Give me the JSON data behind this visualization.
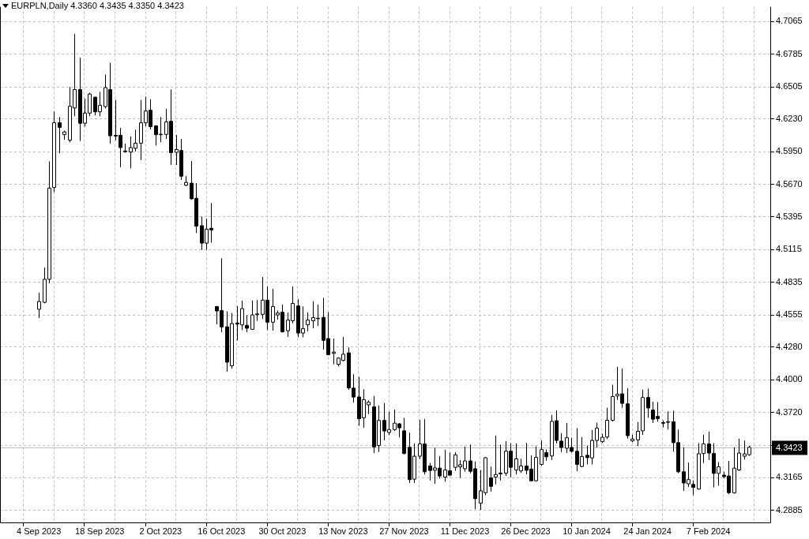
{
  "chart_data": {
    "type": "candlestick",
    "title": "EURPLN,Daily 4.3360 4.3435 4.3350 4.3423",
    "categories": [
      "4 Sep 2023",
      null,
      null,
      null,
      null,
      null,
      null,
      null,
      null,
      null,
      null,
      null,
      "18 Sep 2023",
      null,
      null,
      null,
      null,
      null,
      null,
      null,
      null,
      null,
      null,
      null,
      "2 Oct 2023",
      null,
      null,
      null,
      null,
      null,
      null,
      null,
      null,
      null,
      null,
      null,
      "16 Oct 2023",
      null,
      null,
      null,
      null,
      null,
      null,
      null,
      null,
      null,
      null,
      null,
      "30 Oct 2023",
      null,
      null,
      null,
      null,
      null,
      null,
      null,
      null,
      null,
      null,
      null,
      "13 Nov 2023",
      null,
      null,
      null,
      null,
      null,
      null,
      null,
      null,
      null,
      null,
      null,
      "27 Nov 2023",
      null,
      null,
      null,
      null,
      null,
      null,
      null,
      null,
      null,
      null,
      null,
      "11 Dec 2023",
      null,
      null,
      null,
      null,
      null,
      null,
      null,
      null,
      null,
      null,
      null,
      "26 Dec 2023",
      null,
      null,
      null,
      null,
      null,
      null,
      null,
      null,
      null,
      null,
      null,
      "10 Jan 2024",
      null,
      null,
      null,
      null,
      null,
      null,
      null,
      null,
      null,
      null,
      null,
      "24 Jan 2024",
      null,
      null,
      null,
      null,
      null,
      null,
      null,
      null,
      null,
      null,
      null,
      "7 Feb 2024",
      null,
      null,
      null,
      null,
      null,
      null,
      null,
      null
    ],
    "ohlc": [
      [
        4.4603,
        4.4744,
        4.4529,
        4.467
      ],
      [
        4.4663,
        4.496,
        4.4654,
        4.486
      ],
      [
        4.486,
        4.5868,
        4.4826,
        4.564
      ],
      [
        4.5645,
        4.6294,
        4.5607,
        4.6198
      ],
      [
        4.6198,
        4.6247,
        4.5937,
        4.6158
      ],
      [
        4.6098,
        4.6131,
        4.6053,
        4.612
      ],
      [
        4.6049,
        4.6504,
        4.6031,
        4.6339
      ],
      [
        4.6325,
        4.6957,
        4.6254,
        4.6482
      ],
      [
        4.6482,
        4.6756,
        4.6042,
        4.6194
      ],
      [
        4.6194,
        4.6404,
        4.6165,
        4.6281
      ],
      [
        4.6281,
        4.6455,
        4.6254,
        4.6444
      ],
      [
        4.6417,
        4.6421,
        4.6261,
        4.6292
      ],
      [
        4.6292,
        4.6462,
        4.6254,
        4.6348
      ],
      [
        4.6337,
        4.6611,
        4.6321,
        4.6499
      ],
      [
        4.6482,
        4.6711,
        4.602,
        4.6087
      ],
      [
        4.6091,
        4.6395,
        4.6049,
        4.6085
      ],
      [
        4.6091,
        4.6154,
        4.5819,
        4.5986
      ],
      [
        4.5957,
        4.602,
        4.5942,
        4.5951
      ],
      [
        4.5948,
        4.6082,
        4.5808,
        4.5986
      ],
      [
        4.598,
        4.6138,
        4.5953,
        4.6024
      ],
      [
        4.6024,
        4.6392,
        4.5879,
        4.6198
      ],
      [
        4.6198,
        4.6421,
        4.6169,
        4.6299
      ],
      [
        4.6305,
        4.6399,
        4.6142,
        4.6165
      ],
      [
        4.6172,
        4.6176,
        4.6004,
        4.6096
      ],
      [
        4.61,
        4.6247,
        4.6031,
        4.6096
      ],
      [
        4.6099,
        4.6318,
        4.6059,
        4.6206
      ],
      [
        4.6211,
        4.6483,
        4.5838,
        4.5943
      ],
      [
        4.5945,
        4.6095,
        4.5838,
        4.597
      ],
      [
        4.5961,
        4.6059,
        4.5709,
        4.5742
      ],
      [
        4.5664,
        4.5742,
        4.5657,
        4.5688
      ],
      [
        4.5682,
        4.5871,
        4.5541,
        4.5548
      ],
      [
        4.5552,
        4.5682,
        4.5256,
        4.5314
      ],
      [
        4.5318,
        4.5396,
        4.5111,
        4.5169
      ],
      [
        4.5169,
        4.5378,
        4.5111,
        4.5289
      ],
      [
        4.5296,
        4.5512,
        4.5173,
        4.5282
      ],
      [
        4.4627,
        4.4631,
        4.4475,
        4.4589
      ],
      [
        4.4593,
        4.5039,
        4.4408,
        4.4453
      ],
      [
        4.4453,
        4.4586,
        4.4069,
        4.4151
      ],
      [
        4.412,
        4.4571,
        4.4095,
        4.4481
      ],
      [
        4.4486,
        4.4631,
        4.4336,
        4.4477
      ],
      [
        4.447,
        4.4678,
        4.4426,
        4.4609
      ],
      [
        4.4466,
        4.4553,
        4.4408,
        4.4441
      ],
      [
        4.4432,
        4.4678,
        4.4426,
        4.4555
      ],
      [
        4.4557,
        4.4682,
        4.4504,
        4.4564
      ],
      [
        4.456,
        4.4879,
        4.4519,
        4.4682
      ],
      [
        4.4682,
        4.48,
        4.4426,
        4.4493
      ],
      [
        4.4493,
        4.4778,
        4.4421,
        4.4627
      ],
      [
        4.4555,
        4.4593,
        4.4515,
        4.4571
      ],
      [
        4.4578,
        4.4643,
        4.4404,
        4.4411
      ],
      [
        4.442,
        4.4576,
        4.4367,
        4.4511
      ],
      [
        4.4505,
        4.4799,
        4.4483,
        4.4654
      ],
      [
        4.4632,
        4.469,
        4.4364,
        4.44
      ],
      [
        4.44,
        4.4628,
        4.4364,
        4.4438
      ],
      [
        4.4471,
        4.4578,
        4.4416,
        4.4511
      ],
      [
        4.4505,
        4.4672,
        4.4442,
        4.4532
      ],
      [
        4.4527,
        4.4643,
        4.446,
        4.4523
      ],
      [
        4.4534,
        4.4701,
        4.4259,
        4.4338
      ],
      [
        4.4353,
        4.4578,
        4.421,
        4.4215
      ],
      [
        4.4226,
        4.4353,
        4.4132,
        4.4237
      ],
      [
        4.4132,
        4.4193,
        4.4114,
        4.4186
      ],
      [
        4.4166,
        4.4367,
        4.4159,
        4.4219
      ],
      [
        4.423,
        4.4277,
        4.3914,
        4.3931
      ],
      [
        4.3929,
        4.4048,
        4.3806,
        4.3853
      ],
      [
        4.3853,
        4.4025,
        4.3608,
        4.3668
      ],
      [
        4.3675,
        4.392,
        4.359,
        4.3831
      ],
      [
        4.3786,
        4.3824,
        4.3708,
        4.3809
      ],
      [
        4.3769,
        4.3862,
        4.3374,
        4.3427
      ],
      [
        4.3438,
        4.378,
        4.3383,
        4.3653
      ],
      [
        4.3653,
        4.3802,
        4.3483,
        4.3563
      ],
      [
        4.355,
        4.3728,
        4.3528,
        4.3575
      ],
      [
        4.3575,
        4.3746,
        4.3563,
        4.363
      ],
      [
        4.3624,
        4.363,
        4.3508,
        4.359
      ],
      [
        4.3564,
        4.3675,
        4.3363,
        4.337
      ],
      [
        4.3423,
        4.3548,
        4.3118,
        4.3147
      ],
      [
        4.3151,
        4.3457,
        4.3118,
        4.3347
      ],
      [
        4.3347,
        4.3658,
        4.3323,
        4.3452
      ],
      [
        4.3452,
        4.3664,
        4.3191,
        4.3214
      ],
      [
        4.3263,
        4.3289,
        4.314,
        4.3225
      ],
      [
        4.3227,
        4.3419,
        4.3111,
        4.3247
      ],
      [
        4.3245,
        4.3347,
        4.3156,
        4.3178
      ],
      [
        4.3169,
        4.3401,
        4.3129,
        4.3229
      ],
      [
        4.3222,
        4.3379,
        4.3182,
        4.3185
      ],
      [
        4.3252,
        4.3381,
        4.3222,
        4.3359
      ],
      [
        4.3256,
        4.3314,
        4.3162,
        4.3274
      ],
      [
        4.324,
        4.343,
        4.3214,
        4.3307
      ],
      [
        4.3307,
        4.3446,
        4.32,
        4.3218
      ],
      [
        4.324,
        4.3303,
        4.2895,
        4.2984
      ],
      [
        4.2946,
        4.3229,
        4.2888,
        4.3051
      ],
      [
        4.3035,
        4.3341,
        4.3013,
        4.3334
      ],
      [
        4.3162,
        4.3258,
        4.3044,
        4.3089
      ],
      [
        4.3169,
        4.3524,
        4.3106,
        4.3191
      ],
      [
        4.3202,
        4.3446,
        4.314,
        4.3196
      ],
      [
        4.3202,
        4.3475,
        4.3178,
        4.339
      ],
      [
        4.339,
        4.3457,
        4.3167,
        4.3252
      ],
      [
        4.3229,
        4.3457,
        4.3191,
        4.3325
      ],
      [
        4.3221,
        4.3326,
        4.3204,
        4.3264
      ],
      [
        4.3264,
        4.346,
        4.3192,
        4.3226
      ],
      [
        4.3237,
        4.3355,
        4.3132,
        4.3137
      ],
      [
        4.3137,
        4.3431,
        4.313,
        4.3337
      ],
      [
        4.3277,
        4.3482,
        4.3264,
        4.3404
      ],
      [
        4.3378,
        4.3404,
        4.3308,
        4.3342
      ],
      [
        4.3349,
        4.3701,
        4.3315,
        4.3645
      ],
      [
        4.365,
        4.3739,
        4.3456,
        4.3482
      ],
      [
        4.3476,
        4.3545,
        4.3382,
        4.3422
      ],
      [
        4.3415,
        4.3632,
        4.3375,
        4.3505
      ],
      [
        4.3422,
        4.3505,
        4.3378,
        4.3389
      ],
      [
        4.3389,
        4.3587,
        4.3219,
        4.3277
      ],
      [
        4.3259,
        4.3511,
        4.3253,
        4.3344
      ],
      [
        4.3355,
        4.3438,
        4.3277,
        4.3335
      ],
      [
        4.3333,
        4.3572,
        4.3277,
        4.3482
      ],
      [
        4.3482,
        4.3634,
        4.3422,
        4.3587
      ],
      [
        4.3471,
        4.3538,
        4.346,
        4.3509
      ],
      [
        4.3511,
        4.3761,
        4.3494,
        4.3654
      ],
      [
        4.3654,
        4.3958,
        4.3643,
        4.3857
      ],
      [
        4.3862,
        4.4112,
        4.3828,
        4.3877
      ],
      [
        4.388,
        4.4096,
        4.3761,
        4.3799
      ],
      [
        4.3795,
        4.3929,
        4.3498,
        4.3523
      ],
      [
        4.3478,
        4.3531,
        4.3467,
        4.3494
      ],
      [
        4.3487,
        4.3639,
        4.3433,
        4.356
      ],
      [
        4.3564,
        4.3916,
        4.353,
        4.3849
      ],
      [
        4.3849,
        4.3925,
        4.3675,
        4.376
      ],
      [
        4.3742,
        4.3814,
        4.3631,
        4.3664
      ],
      [
        4.3687,
        4.3809,
        4.3642,
        4.3669
      ],
      [
        4.3635,
        4.3653,
        4.3593,
        4.3629
      ],
      [
        4.3642,
        4.3731,
        4.3575,
        4.3637
      ],
      [
        4.3642,
        4.3736,
        4.3385,
        4.3463
      ],
      [
        4.3463,
        4.3575,
        4.3202,
        4.3214
      ],
      [
        4.3214,
        4.3423,
        4.3051,
        4.3118
      ],
      [
        4.3111,
        4.3292,
        4.3084,
        4.3147
      ],
      [
        4.3106,
        4.314,
        4.3013,
        4.308
      ],
      [
        4.3066,
        4.3459,
        4.3062,
        4.3368
      ],
      [
        4.337,
        4.353,
        4.3289,
        4.3452
      ],
      [
        4.3452,
        4.3557,
        4.3314,
        4.3374
      ],
      [
        4.337,
        4.3459,
        4.308,
        4.32
      ],
      [
        4.32,
        4.3296,
        4.3095,
        4.3256
      ],
      [
        4.3185,
        4.3214,
        4.3156,
        4.3173
      ],
      [
        4.3178,
        4.3307,
        4.3022,
        4.3035
      ],
      [
        4.3033,
        4.3423,
        4.3028,
        4.3245
      ],
      [
        4.3229,
        4.3497,
        4.3222,
        4.3374
      ],
      [
        4.3347,
        4.3481,
        4.3318,
        4.3367
      ],
      [
        4.336,
        4.3435,
        4.335,
        4.3423
      ]
    ],
    "ylim": [
      4.2774,
      4.719
    ],
    "yticks": [
      4.7065,
      4.6785,
      4.6505,
      {
        "value": 4.623,
        "label": "4.6230"
      },
      {
        "value": 4.595,
        "label": "4.5950"
      },
      {
        "value": 4.567,
        "label": "4.5670"
      },
      4.5395,
      4.5115,
      4.4835,
      4.4555,
      {
        "value": 4.428,
        "label": "4.4280"
      },
      {
        "value": 4.4,
        "label": "4.4000"
      },
      {
        "value": 4.372,
        "label": "4.3720"
      },
      {
        "value": 4.344,
        "label": null
      },
      4.3165,
      4.2885
    ],
    "grid": true,
    "ref_lines": [
      {
        "axis": "y",
        "value": 4.3423,
        "label": "4.3423",
        "color": "#c0c0c0"
      }
    ]
  }
}
